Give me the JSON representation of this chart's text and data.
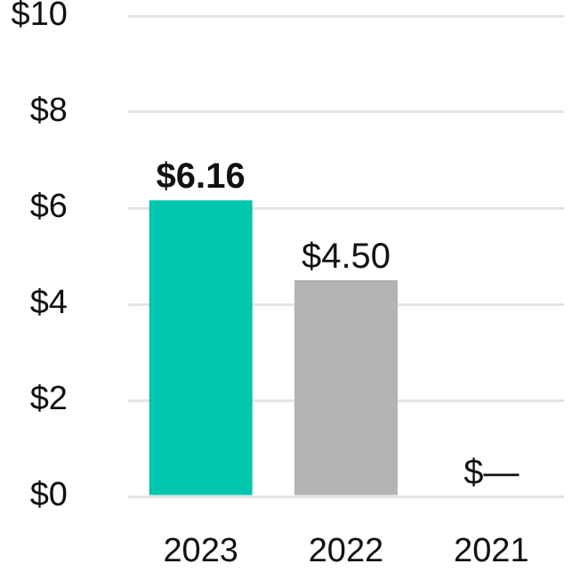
{
  "chart_data": {
    "type": "bar",
    "categories": [
      "2023",
      "2022",
      "2021"
    ],
    "values": [
      6.16,
      4.5,
      0
    ],
    "colors": [
      "#00c6b0",
      "#b3b3b3",
      "#b3b3b3"
    ],
    "value_labels": [
      "$6.16",
      "$4.50",
      "$—"
    ],
    "ylim": [
      0,
      10
    ],
    "yticks": [
      {
        "value": 0,
        "label": "$0"
      },
      {
        "value": 2,
        "label": "$2"
      },
      {
        "value": 4,
        "label": "$4"
      },
      {
        "value": 6,
        "label": "$6"
      },
      {
        "value": 8,
        "label": "$8"
      },
      {
        "value": 10,
        "label": "$10"
      }
    ],
    "grid": "y"
  }
}
